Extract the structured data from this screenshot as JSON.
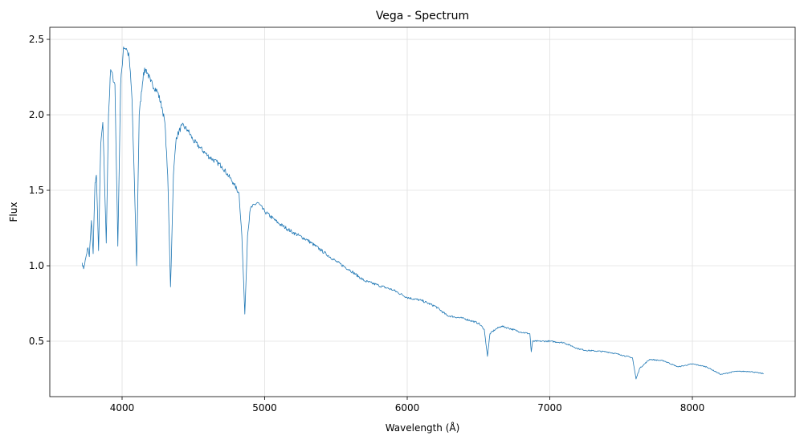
{
  "chart_data": {
    "type": "line",
    "title": "Vega - Spectrum",
    "xlabel": "Wavelength (Å)",
    "ylabel": "Flux",
    "xlim": [
      3493,
      8721
    ],
    "ylim": [
      0.133,
      2.58
    ],
    "xticks": [
      4000,
      5000,
      6000,
      7000,
      8000
    ],
    "yticks": [
      0.5,
      1.0,
      1.5,
      2.0,
      2.5
    ],
    "xtick_labels": [
      "4000",
      "5000",
      "6000",
      "7000",
      "8000"
    ],
    "ytick_labels": [
      "0.5",
      "1.0",
      "1.5",
      "2.0",
      "2.5"
    ],
    "grid": true,
    "color": "#1f77b4",
    "series": [
      {
        "name": "Vega",
        "x": [
          3720,
          3730,
          3745,
          3760,
          3770,
          3785,
          3797,
          3810,
          3820,
          3835,
          3850,
          3865,
          3889,
          3905,
          3920,
          3935,
          3950,
          3970,
          3990,
          4010,
          4030,
          4050,
          4070,
          4102,
          4120,
          4150,
          4170,
          4200,
          4250,
          4280,
          4300,
          4320,
          4340,
          4360,
          4380,
          4420,
          4460,
          4500,
          4550,
          4600,
          4700,
          4780,
          4820,
          4840,
          4861,
          4880,
          4900,
          4950,
          5000,
          5100,
          5200,
          5300,
          5400,
          5500,
          5600,
          5700,
          5800,
          5900,
          6000,
          6100,
          6200,
          6280,
          6400,
          6500,
          6540,
          6563,
          6580,
          6620,
          6660,
          6700,
          6800,
          6860,
          6870,
          6880,
          7000,
          7100,
          7200,
          7250,
          7400,
          7500,
          7580,
          7605,
          7630,
          7700,
          7800,
          7900,
          8000,
          8100,
          8200,
          8300,
          8400,
          8500
        ],
        "y": [
          1.02,
          0.98,
          1.05,
          1.12,
          1.06,
          1.3,
          1.08,
          1.55,
          1.6,
          1.1,
          1.8,
          1.95,
          1.15,
          2.0,
          2.3,
          2.25,
          2.2,
          1.13,
          2.2,
          2.45,
          2.44,
          2.38,
          2.1,
          1.0,
          2.0,
          2.28,
          2.3,
          2.22,
          2.15,
          2.05,
          1.95,
          1.6,
          0.86,
          1.6,
          1.85,
          1.93,
          1.9,
          1.83,
          1.78,
          1.73,
          1.66,
          1.55,
          1.48,
          1.2,
          0.68,
          1.2,
          1.38,
          1.42,
          1.36,
          1.28,
          1.22,
          1.17,
          1.1,
          1.03,
          0.97,
          0.9,
          0.87,
          0.84,
          0.79,
          0.77,
          0.73,
          0.67,
          0.65,
          0.62,
          0.58,
          0.4,
          0.55,
          0.58,
          0.6,
          0.59,
          0.56,
          0.55,
          0.43,
          0.5,
          0.5,
          0.49,
          0.45,
          0.44,
          0.43,
          0.41,
          0.39,
          0.25,
          0.32,
          0.38,
          0.37,
          0.33,
          0.35,
          0.33,
          0.28,
          0.3,
          0.3,
          0.285
        ]
      }
    ]
  }
}
